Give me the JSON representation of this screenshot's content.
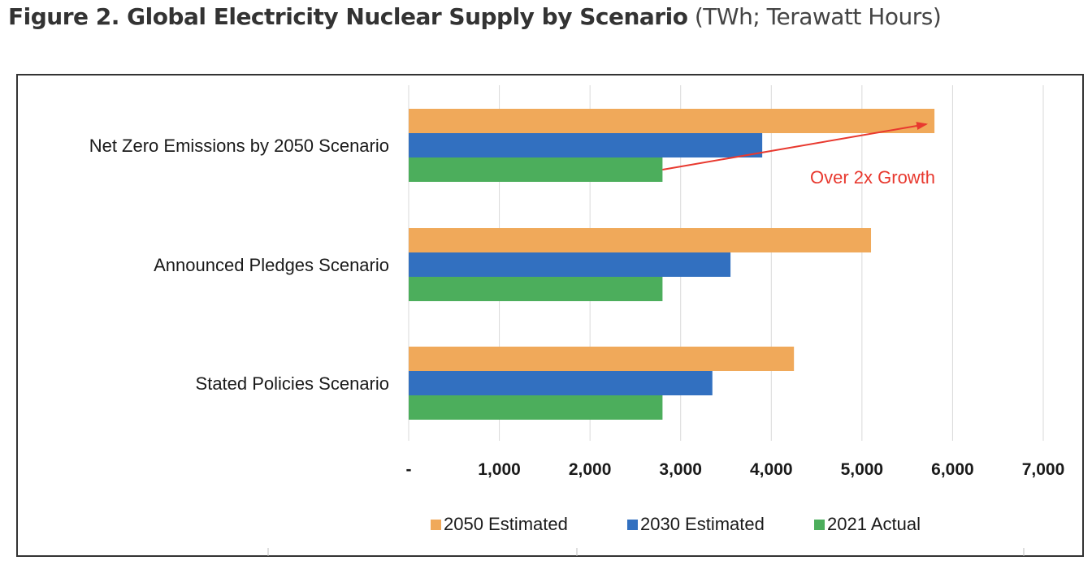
{
  "figure": {
    "title": "Figure 2. Global Electricity Nuclear Supply by Scenario",
    "unit_note": "(TWh; Terawatt Hours)"
  },
  "chart_data": {
    "type": "bar",
    "orientation": "horizontal",
    "categories": [
      "Net Zero Emissions by 2050 Scenario",
      "Announced Pledges Scenario",
      "Stated Policies Scenario"
    ],
    "series": [
      {
        "name": "2050 Estimated",
        "color": "#f0a95a",
        "values": [
          5800,
          5100,
          4250
        ]
      },
      {
        "name": "2030 Estimated",
        "color": "#3270c0",
        "values": [
          3900,
          3550,
          3350
        ]
      },
      {
        "name": "2021 Actual",
        "color": "#4cae5c",
        "values": [
          2800,
          2800,
          2800
        ]
      }
    ],
    "xlim": [
      0,
      7000
    ],
    "x_ticks": [
      0,
      1000,
      2000,
      3000,
      4000,
      5000,
      6000,
      7000
    ],
    "x_tick_labels": [
      "-",
      "1,000",
      "2,000",
      "3,000",
      "4,000",
      "5,000",
      "6,000",
      "7,000"
    ],
    "grid": "vertical",
    "legend": "bottom",
    "annotation": {
      "text": "Over 2x Growth",
      "color": "#e8392f",
      "from": {
        "category": "Net Zero Emissions by 2050 Scenario",
        "series": "2021 Actual",
        "value": 2800
      },
      "to": {
        "category": "Net Zero Emissions by 2050 Scenario",
        "series": "2050 Estimated",
        "value": 5800
      }
    }
  }
}
